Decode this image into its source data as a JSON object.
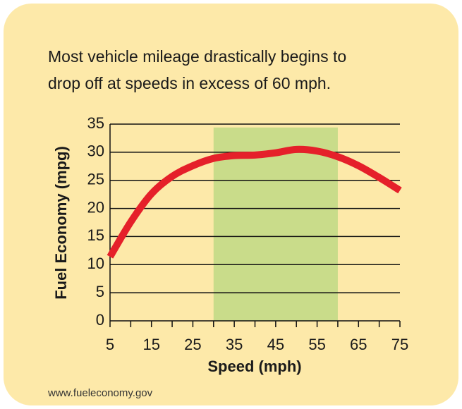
{
  "chart_data": {
    "type": "line",
    "title": [
      "Most vehicle mileage drastically begins to",
      "drop off at speeds in excess of 60 mph."
    ],
    "x_label": "Speed (mph)",
    "y_label": "Fuel Economy (mpg)",
    "source": "www.fueleconomy.gov",
    "x": [
      5,
      10,
      15,
      20,
      25,
      30,
      35,
      40,
      45,
      50,
      55,
      60,
      65,
      70,
      75
    ],
    "series": [
      {
        "name": "Fuel Economy",
        "color": "#e5202a",
        "values": [
          11.4,
          17.6,
          22.6,
          25.7,
          27.6,
          28.9,
          29.4,
          29.5,
          29.9,
          30.5,
          30.2,
          29.2,
          27.6,
          25.5,
          23.2
        ]
      }
    ],
    "highlight": {
      "x": [
        30,
        60
      ],
      "y": [
        0,
        34.4
      ],
      "color": "#c9dc8a"
    },
    "xlim": [
      5,
      75
    ],
    "xticks": [
      5,
      15,
      25,
      35,
      45,
      55,
      65,
      75
    ],
    "xticks_minor": [
      10,
      20,
      30,
      40,
      50,
      60,
      70
    ],
    "ylim": [
      0,
      35
    ],
    "yticks": [
      0,
      5,
      10,
      15,
      20,
      25,
      30,
      35
    ],
    "grid": true
  }
}
